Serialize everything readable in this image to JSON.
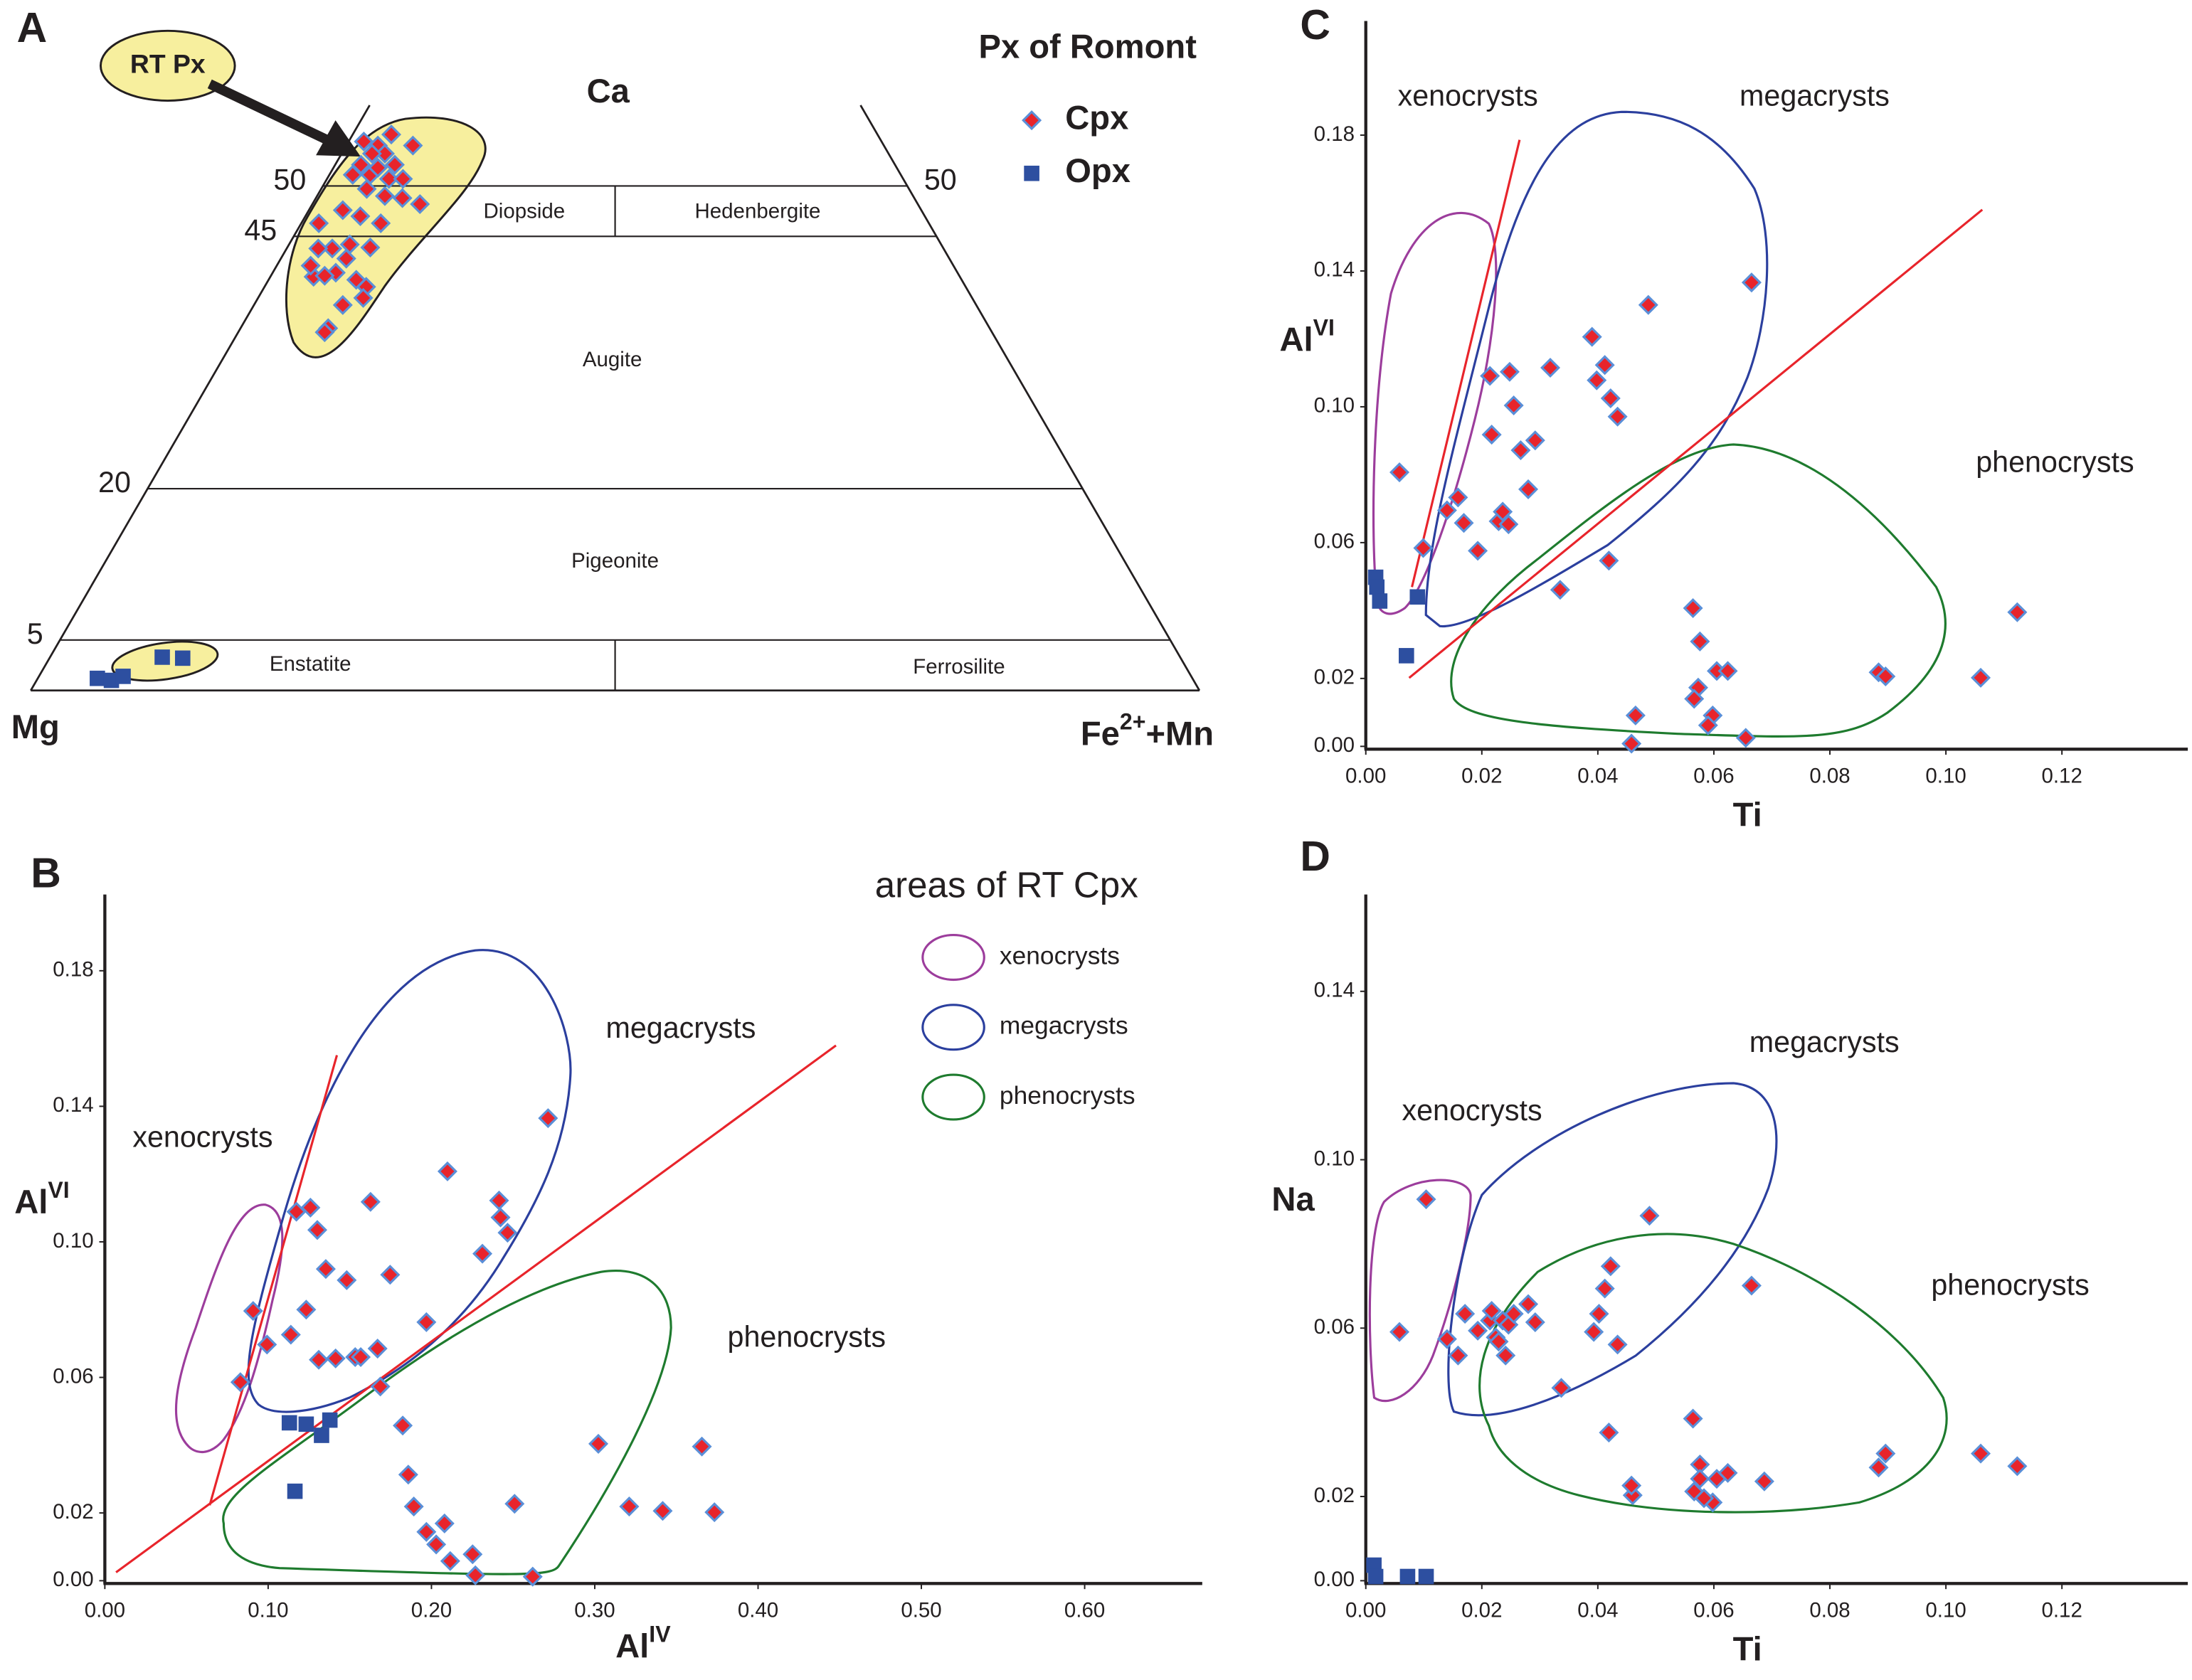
{
  "chart_data": [
    {
      "type": "ternary",
      "panel_label": "A",
      "legend_title": "Px of Romont",
      "top_label": "Ca",
      "left_label": "Mg",
      "right_label": [
        "Fe",
        "2+",
        "+Mn"
      ],
      "left_ticks": [
        50,
        45,
        20,
        5
      ],
      "right_ticks": [
        50
      ],
      "fields": [
        "Diopside",
        "Hedenbergite",
        "Augite",
        "Pigeonite",
        "Enstatite",
        "Ferrosilite"
      ],
      "annotation": "RT Px",
      "region_color": "#f7ef9e",
      "series": [
        {
          "name": "Cpx",
          "marker": "diamond",
          "color": "#e8242b",
          "edgecolor": "#5a8fd8",
          "wo": [
            54.4,
            55.1,
            54.0,
            53.2,
            54.0,
            52.1,
            51.1,
            51.8,
            50.7,
            50.7,
            49.7,
            49.0,
            48.8,
            48.2,
            47.6,
            47.0,
            46.3,
            46.3,
            43.8,
            44.2,
            43.8,
            43.9,
            42.8,
            41.4,
            41.0,
            41.1,
            40.7,
            40.0,
            38.9,
            38.2,
            35.9,
            35.5,
            51.1,
            52.1,
            53.2,
            42.1
          ],
          "fs": [
            1.3,
            3.3,
            2.7,
            3.7,
            5.7,
            2.2,
            3.5,
            3.8,
            5.3,
            6.5,
            3.9,
            5.8,
            7.4,
            9.2,
            2.9,
            4.7,
            6.8,
            1.5,
            3.9,
            5.2,
            2.7,
            7.1,
            5.6,
            5.4,
            3.7,
            4.6,
            7.5,
            8.7,
            9.0,
            7.6,
            7.5,
            7.4,
            2.0,
            5.1,
            2.6,
            2.9
          ]
        },
        {
          "name": "Opx",
          "marker": "square",
          "color": "#2d4fa0",
          "wo": [
            1.2,
            1.0,
            1.4,
            3.3,
            3.2
          ],
          "fs": [
            5.1,
            6.4,
            7.2,
            9.6,
            11.4
          ]
        }
      ]
    },
    {
      "type": "scatter",
      "panel_label": "B",
      "xlabel": [
        "Al",
        "IV"
      ],
      "ylabel": [
        "Al",
        "VI"
      ],
      "xlim": [
        0,
        0.672
      ],
      "ylim": [
        0,
        0.2025
      ],
      "xticks": [
        {
          "value": 0,
          "label": "0.00"
        },
        {
          "value": 0.1,
          "label": "0.10"
        },
        {
          "value": 0.2,
          "label": "0.20"
        },
        {
          "value": 0.3,
          "label": "0.30"
        },
        {
          "value": 0.4,
          "label": "0.40"
        },
        {
          "value": 0.5,
          "label": "0.50"
        },
        {
          "value": 0.6,
          "label": "0.60"
        }
      ],
      "yticks": [
        {
          "value": 0,
          "label": "0.00"
        },
        0.02,
        0.06,
        {
          "value": 0.1,
          "label": "0.10"
        },
        0.14,
        0.18
      ],
      "legend_title": "areas of RT Cpx",
      "areas": [
        {
          "name": "xenocrysts",
          "color": "#9c3d9c"
        },
        {
          "name": "megacrysts",
          "color": "#2b3f9e"
        },
        {
          "name": "phenocrysts",
          "color": "#1e7b2e"
        }
      ],
      "region_labels": [
        "xenocrysts",
        "megacrysts",
        "phenocrysts"
      ],
      "series": [
        {
          "marker": "diamond",
          "color": "#e8242b",
          "edgecolor": "#5a8fd8",
          "x": [
            0.083,
            0.0908,
            0.0993,
            0.1139,
            0.1173,
            0.1259,
            0.1233,
            0.1301,
            0.1353,
            0.131,
            0.1413,
            0.1481,
            0.1533,
            0.1567,
            0.1627,
            0.167,
            0.1687,
            0.1747,
            0.1824,
            0.1858,
            0.1892,
            0.1969,
            0.1969,
            0.2029,
            0.208,
            0.2098,
            0.2115,
            0.2252,
            0.2269,
            0.2312,
            0.2414,
            0.2423,
            0.2466,
            0.2714,
            0.2509,
            0.262,
            0.3022,
            0.3211,
            0.3416,
            0.3656,
            0.3733
          ],
          "y": [
            0.0586,
            0.0796,
            0.0697,
            0.0726,
            0.1089,
            0.1101,
            0.08,
            0.1035,
            0.092,
            0.0652,
            0.0656,
            0.0887,
            0.066,
            0.066,
            0.1118,
            0.0685,
            0.0573,
            0.0903,
            0.0458,
            0.0313,
            0.0219,
            0.0763,
            0.0144,
            0.0107,
            0.0169,
            0.1208,
            0.0058,
            0.0078,
            0.0016,
            0.0965,
            0.1122,
            0.1072,
            0.1027,
            0.1365,
            0.0227,
            0.0012,
            0.0404,
            0.0219,
            0.0206,
            0.0396,
            0.0202
          ]
        },
        {
          "marker": "square",
          "color": "#2d4fa0",
          "x": [
            0.113,
            0.1233,
            0.1327,
            0.1378,
            0.1164
          ],
          "y": [
            0.0466,
            0.0462,
            0.0429,
            0.0474,
            0.0264
          ]
        }
      ]
    },
    {
      "type": "scatter",
      "panel_label": "C",
      "xlabel": [
        "Ti"
      ],
      "ylabel": [
        "Al",
        "VI"
      ],
      "xlim": [
        0,
        0.1417
      ],
      "ylim": [
        0,
        0.2136
      ],
      "xticks": [
        {
          "value": 0,
          "label": "0.00"
        },
        0.02,
        0.04,
        0.06,
        0.08,
        {
          "value": 0.1,
          "label": "0.10"
        },
        0.12
      ],
      "yticks": [
        {
          "value": 0,
          "label": "0.00"
        },
        0.02,
        0.06,
        {
          "value": 0.1,
          "label": "0.10"
        },
        0.14,
        0.18
      ],
      "region_labels": [
        "xenocrysts",
        "megacrysts",
        "phenocrysts"
      ],
      "series": [
        {
          "marker": "diamond",
          "color": "#e8242b",
          "edgecolor": "#5a8fd8",
          "x": [
            0.0058,
            0.0099,
            0.014,
            0.0159,
            0.0169,
            0.0193,
            0.0214,
            0.0217,
            0.0229,
            0.0236,
            0.0246,
            0.0248,
            0.0255,
            0.0267,
            0.028,
            0.0292,
            0.0318,
            0.0335,
            0.039,
            0.0398,
            0.0412,
            0.0422,
            0.0434,
            0.0419,
            0.0487,
            0.0465,
            0.0458,
            0.0564,
            0.0576,
            0.0605,
            0.0624,
            0.0573,
            0.0566,
            0.0598,
            0.059,
            0.0655,
            0.0665,
            0.0884,
            0.0896,
            0.106,
            0.1123
          ],
          "y": [
            0.0807,
            0.0584,
            0.0695,
            0.0733,
            0.0658,
            0.0576,
            0.1091,
            0.0918,
            0.0663,
            0.0691,
            0.0654,
            0.1103,
            0.1004,
            0.0872,
            0.0757,
            0.0901,
            0.1115,
            0.0461,
            0.1206,
            0.1078,
            0.1123,
            0.1025,
            0.0971,
            0.0547,
            0.13,
            0.0091,
            0.0008,
            0.0407,
            0.0309,
            0.0222,
            0.0222,
            0.0173,
            0.014,
            0.0091,
            0.0062,
            0.0025,
            0.1366,
            0.0218,
            0.0206,
            0.0202,
            0.0395
          ]
        },
        {
          "marker": "square",
          "color": "#2d4fa0",
          "x": [
            0.0017,
            0.0019,
            0.0024,
            0.0089,
            0.007
          ],
          "y": [
            0.0498,
            0.0469,
            0.0428,
            0.044,
            0.0267
          ]
        }
      ]
    },
    {
      "type": "scatter",
      "panel_label": "D",
      "xlabel": [
        "Ti"
      ],
      "ylabel": [
        "Na"
      ],
      "xlim": [
        0,
        0.1417
      ],
      "ylim": [
        0,
        0.163
      ],
      "xticks": [
        {
          "value": 0,
          "label": "0.00"
        },
        0.02,
        0.04,
        0.06,
        0.08,
        {
          "value": 0.1,
          "label": "0.10"
        },
        0.12
      ],
      "yticks": [
        {
          "value": 0,
          "label": "0.00"
        },
        0.02,
        0.06,
        {
          "value": 0.1,
          "label": "0.10"
        },
        0.14
      ],
      "region_labels": [
        "xenocrysts",
        "megacrysts",
        "phenocrysts"
      ],
      "series": [
        {
          "marker": "diamond",
          "color": "#e8242b",
          "edgecolor": "#5a8fd8",
          "x": [
            0.0058,
            0.0104,
            0.014,
            0.0159,
            0.0171,
            0.0193,
            0.0214,
            0.0217,
            0.0224,
            0.0229,
            0.0236,
            0.0241,
            0.0246,
            0.0255,
            0.028,
            0.0292,
            0.0337,
            0.0393,
            0.0402,
            0.0412,
            0.0422,
            0.0434,
            0.0419,
            0.0489,
            0.046,
            0.0458,
            0.0564,
            0.0576,
            0.0605,
            0.0624,
            0.0576,
            0.0566,
            0.0598,
            0.0583,
            0.0687,
            0.0665,
            0.0884,
            0.0896,
            0.106,
            0.1123
          ],
          "y": [
            0.0591,
            0.0906,
            0.0574,
            0.0535,
            0.0634,
            0.0594,
            0.0618,
            0.0641,
            0.0578,
            0.0568,
            0.0618,
            0.0535,
            0.0608,
            0.0634,
            0.0657,
            0.0614,
            0.0458,
            0.0591,
            0.0634,
            0.0694,
            0.0747,
            0.0561,
            0.0352,
            0.0867,
            0.0203,
            0.0226,
            0.0385,
            0.0276,
            0.0242,
            0.0256,
            0.0242,
            0.0212,
            0.0186,
            0.0196,
            0.0236,
            0.0701,
            0.0269,
            0.0302,
            0.0302,
            0.0272
          ]
        },
        {
          "marker": "square",
          "color": "#2d4fa0",
          "x": [
            0.0014,
            0.0017,
            0.0072,
            0.0104
          ],
          "y": [
            0.0037,
            0.001,
            0.001,
            0.001
          ]
        }
      ]
    }
  ]
}
